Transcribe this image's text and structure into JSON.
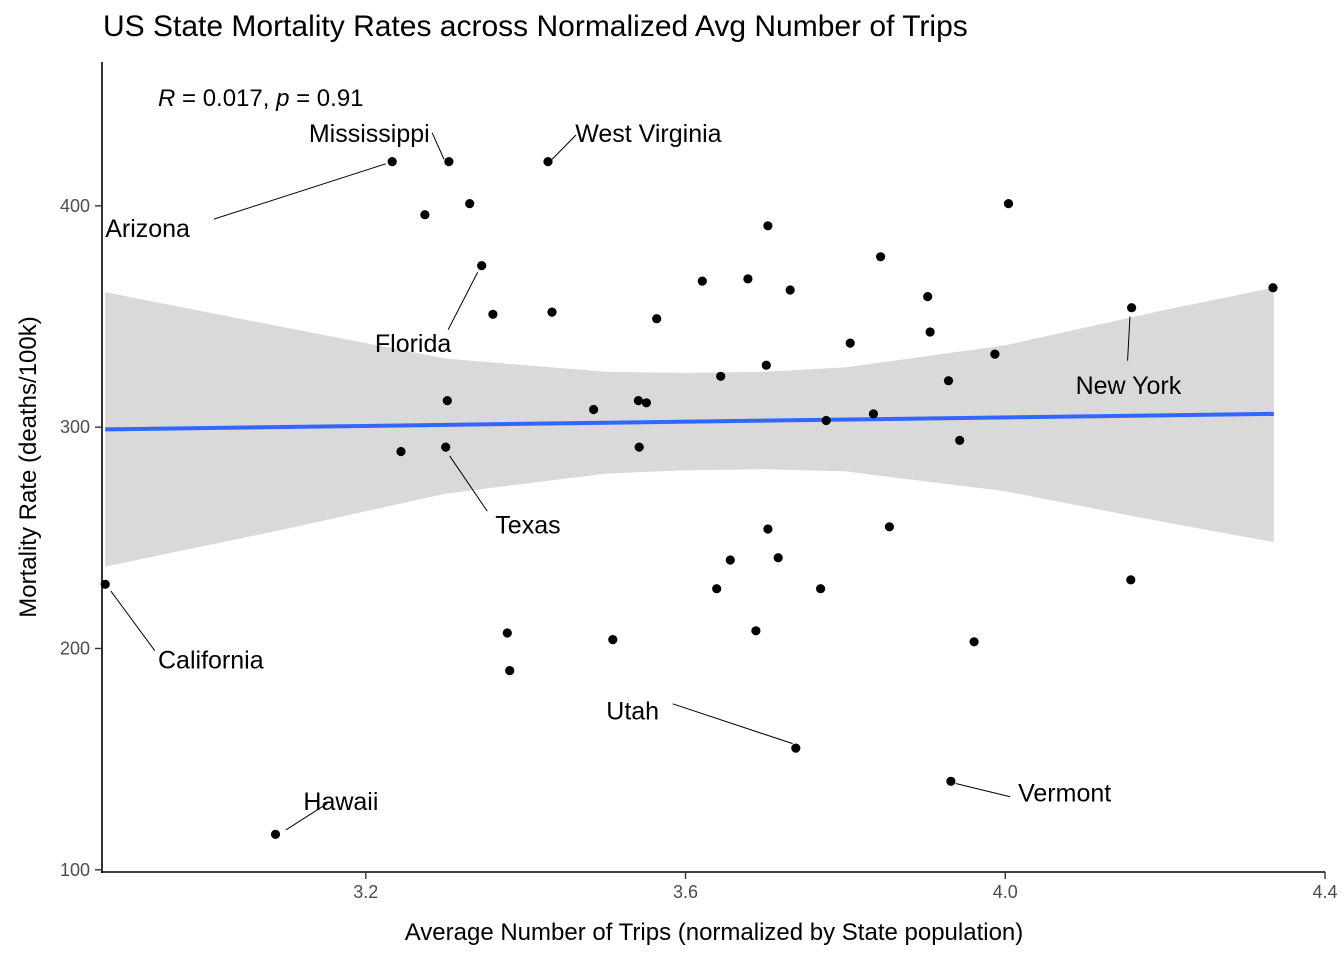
{
  "chart_data": {
    "type": "scatter",
    "title": "US State Mortality Rates across Normalized Avg Number of Trips",
    "xlabel": "Average Number of Trips (normalized by State population)",
    "ylabel": "Mortality Rate (deaths/100k)",
    "xlim": [
      2.87,
      4.4
    ],
    "ylim": [
      99,
      465
    ],
    "xticks": [
      3.2,
      3.6,
      4.0,
      4.4
    ],
    "yticks": [
      100,
      200,
      300,
      400
    ],
    "xtick_labels": [
      "3.2",
      "3.6",
      "4.0",
      "4.4"
    ],
    "ytick_labels": [
      "100",
      "200",
      "300",
      "400"
    ],
    "grid": false,
    "annotation": {
      "r_symbol": "R",
      "r_value": " = 0.017, ",
      "p_symbol": "p",
      "p_value": " = 0.91"
    },
    "fit_line": {
      "color": "#3366FF",
      "x": [
        2.874,
        4.336
      ],
      "y": [
        299,
        306
      ]
    },
    "confidence_band": {
      "color": "#d9d9d9",
      "x": [
        2.874,
        3.1,
        3.3,
        3.5,
        3.6,
        3.7,
        3.8,
        4.0,
        4.2,
        4.336
      ],
      "upper": [
        361,
        345,
        331,
        325,
        324.5,
        325,
        327,
        337,
        353,
        363
      ],
      "lower": [
        237,
        254,
        270,
        279,
        280.5,
        281,
        280,
        271,
        257,
        248
      ]
    },
    "points": [
      {
        "x": 2.874,
        "y": 229,
        "label": "California"
      },
      {
        "x": 3.087,
        "y": 116,
        "label": "Hawaii"
      },
      {
        "x": 3.233,
        "y": 420,
        "label": "Arizona"
      },
      {
        "x": 3.304,
        "y": 420,
        "label": "Mississippi"
      },
      {
        "x": 3.428,
        "y": 420,
        "label": "West Virginia"
      },
      {
        "x": 3.345,
        "y": 373,
        "label": "Florida"
      },
      {
        "x": 3.3,
        "y": 291,
        "label": "Texas"
      },
      {
        "x": 3.738,
        "y": 155,
        "label": "Utah"
      },
      {
        "x": 3.932,
        "y": 140,
        "label": "Vermont"
      },
      {
        "x": 4.158,
        "y": 354,
        "label": "New York"
      },
      {
        "x": 3.274,
        "y": 396,
        "label": ""
      },
      {
        "x": 3.33,
        "y": 401,
        "label": ""
      },
      {
        "x": 3.359,
        "y": 351,
        "label": ""
      },
      {
        "x": 3.433,
        "y": 352,
        "label": ""
      },
      {
        "x": 3.302,
        "y": 312,
        "label": ""
      },
      {
        "x": 3.244,
        "y": 289,
        "label": ""
      },
      {
        "x": 3.377,
        "y": 207,
        "label": ""
      },
      {
        "x": 3.38,
        "y": 190,
        "label": ""
      },
      {
        "x": 3.509,
        "y": 204,
        "label": ""
      },
      {
        "x": 3.485,
        "y": 308,
        "label": ""
      },
      {
        "x": 3.541,
        "y": 312,
        "label": ""
      },
      {
        "x": 3.551,
        "y": 311,
        "label": ""
      },
      {
        "x": 3.542,
        "y": 291,
        "label": ""
      },
      {
        "x": 3.564,
        "y": 349,
        "label": ""
      },
      {
        "x": 3.621,
        "y": 366,
        "label": ""
      },
      {
        "x": 3.678,
        "y": 367,
        "label": ""
      },
      {
        "x": 3.703,
        "y": 391,
        "label": ""
      },
      {
        "x": 3.731,
        "y": 362,
        "label": ""
      },
      {
        "x": 3.644,
        "y": 323,
        "label": ""
      },
      {
        "x": 3.701,
        "y": 328,
        "label": ""
      },
      {
        "x": 3.639,
        "y": 227,
        "label": ""
      },
      {
        "x": 3.656,
        "y": 240,
        "label": ""
      },
      {
        "x": 3.688,
        "y": 208,
        "label": ""
      },
      {
        "x": 3.703,
        "y": 254,
        "label": ""
      },
      {
        "x": 3.716,
        "y": 241,
        "label": ""
      },
      {
        "x": 3.769,
        "y": 227,
        "label": ""
      },
      {
        "x": 3.776,
        "y": 303,
        "label": ""
      },
      {
        "x": 3.806,
        "y": 338,
        "label": ""
      },
      {
        "x": 3.835,
        "y": 306,
        "label": ""
      },
      {
        "x": 3.844,
        "y": 377,
        "label": ""
      },
      {
        "x": 3.855,
        "y": 255,
        "label": ""
      },
      {
        "x": 3.903,
        "y": 359,
        "label": ""
      },
      {
        "x": 3.906,
        "y": 343,
        "label": ""
      },
      {
        "x": 3.929,
        "y": 321,
        "label": ""
      },
      {
        "x": 3.943,
        "y": 294,
        "label": ""
      },
      {
        "x": 3.961,
        "y": 203,
        "label": ""
      },
      {
        "x": 3.987,
        "y": 333,
        "label": ""
      },
      {
        "x": 4.004,
        "y": 401,
        "label": ""
      },
      {
        "x": 4.157,
        "y": 231,
        "label": ""
      },
      {
        "x": 4.335,
        "y": 363,
        "label": ""
      }
    ],
    "labels": [
      {
        "text": "California",
        "x": 2.94,
        "y": 195,
        "anchor": "start",
        "lead": [
          2.881,
          226,
          2.936,
          199
        ]
      },
      {
        "text": "Hawaii",
        "x": 3.122,
        "y": 131,
        "anchor": "start",
        "lead": [
          3.1,
          118,
          3.152,
          130
        ]
      },
      {
        "text": "Arizona",
        "x": 2.874,
        "y": 390,
        "anchor": "start",
        "lead": [
          3.225,
          419,
          3.01,
          394
        ]
      },
      {
        "text": "Mississippi",
        "x": 3.28,
        "y": 433,
        "anchor": "end",
        "lead": [
          3.298,
          421,
          3.283,
          433
        ]
      },
      {
        "text": "West Virginia",
        "x": 3.462,
        "y": 433,
        "anchor": "start",
        "lead": [
          3.433,
          421,
          3.463,
          432
        ]
      },
      {
        "text": "Florida",
        "x": 3.307,
        "y": 338,
        "anchor": "end",
        "lead": [
          3.34,
          370,
          3.303,
          344
        ]
      },
      {
        "text": "Texas",
        "x": 3.362,
        "y": 256,
        "anchor": "start",
        "lead": [
          3.305,
          287,
          3.352,
          262
        ]
      },
      {
        "text": "Utah",
        "x": 3.567,
        "y": 172,
        "anchor": "end",
        "lead": [
          3.734,
          157,
          3.584,
          175
        ]
      },
      {
        "text": "Vermont",
        "x": 4.016,
        "y": 135,
        "anchor": "start",
        "lead": [
          3.938,
          139,
          4.006,
          133
        ]
      },
      {
        "text": "New York",
        "x": 4.154,
        "y": 319,
        "anchor": "middle",
        "lead": [
          4.156,
          350,
          4.153,
          330
        ]
      }
    ]
  }
}
